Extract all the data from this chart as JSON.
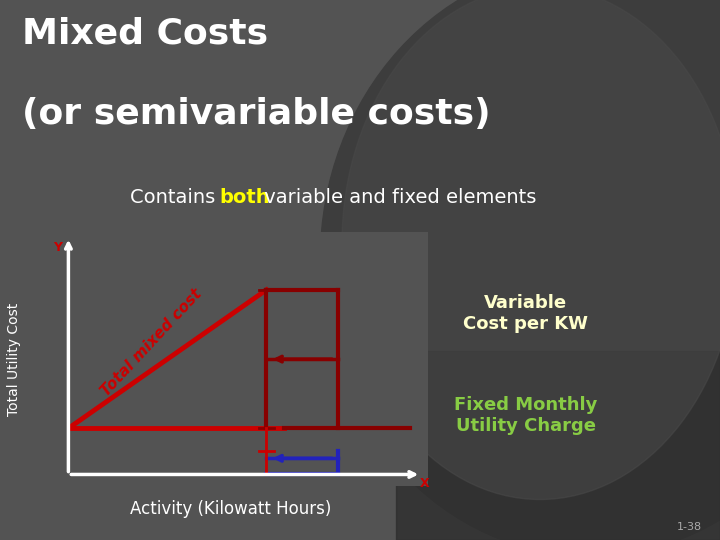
{
  "title_line1": "Mixed Costs",
  "title_line2": "(or semivariable costs)",
  "subtitle_normal": "Contains ",
  "subtitle_bold": "both",
  "subtitle_rest": " variable and fixed elements",
  "ylabel": "Total Utility Cost",
  "xlabel": "Activity (Kilowatt Hours)",
  "label_total_mixed": "Total mixed cost",
  "label_variable": "Variable\nCost per KW",
  "label_fixed": "Fixed Monthly\nUtility Charge",
  "slide_number": "1-38",
  "bg_color": "#535353",
  "bg_ellipse_color": "#3a3a3a",
  "title_color": "#ffffff",
  "subtitle_color": "#ffffff",
  "both_color": "#ffff00",
  "axis_color": "#ffffff",
  "line_red_color": "#cc0000",
  "line_darkred_color": "#880000",
  "line_blue_color": "#2222bb",
  "label_mixed_color": "#cc0000",
  "label_variable_color": "#ffffcc",
  "label_fixed_color": "#88cc44",
  "slide_num_color": "#aaaaaa",
  "title_fontsize": 26,
  "subtitle_fontsize": 14
}
